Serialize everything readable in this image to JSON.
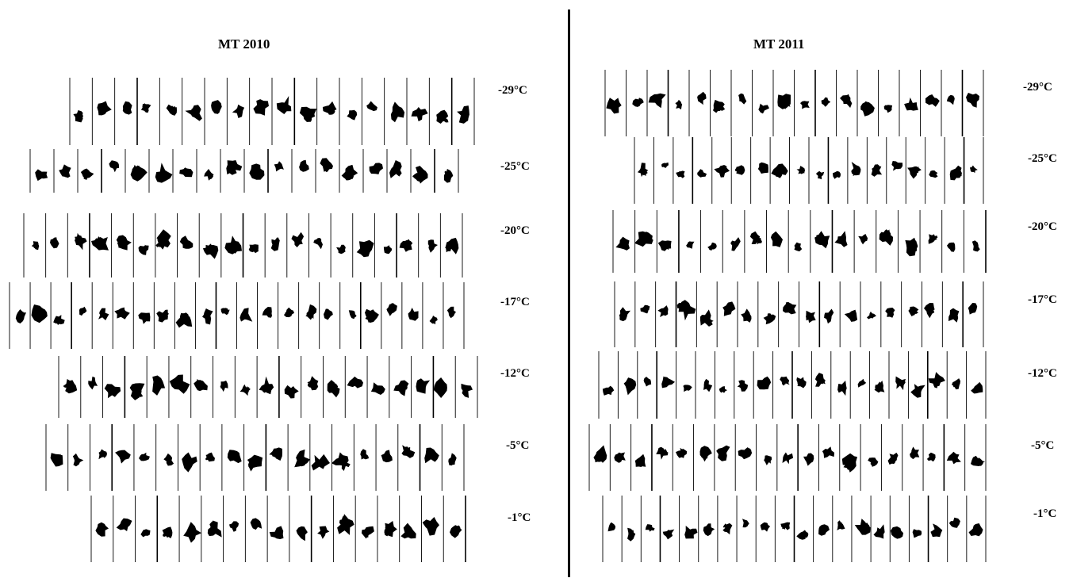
{
  "panels": [
    {
      "title": "MT 2010",
      "rows": [
        {
          "temp": "-29°C",
          "frames": 18
        },
        {
          "temp": "-25°C",
          "frames": 18
        },
        {
          "temp": "-20°C",
          "frames": 20
        },
        {
          "temp": "-17°C",
          "frames": 22
        },
        {
          "temp": "-12°C",
          "frames": 19
        },
        {
          "temp": "-5°C",
          "frames": 19
        },
        {
          "temp": "-1°C",
          "frames": 17
        }
      ]
    },
    {
      "title": "MT 2011",
      "rows": [
        {
          "temp": "-29°C",
          "frames": 18
        },
        {
          "temp": "-25°C",
          "frames": 18
        },
        {
          "temp": "-20°C",
          "frames": 17
        },
        {
          "temp": "-17°C",
          "frames": 18
        },
        {
          "temp": "-12°C",
          "frames": 20
        },
        {
          "temp": "-5°C",
          "frames": 19
        },
        {
          "temp": "-1°C",
          "frames": 20
        }
      ]
    }
  ],
  "colors": {
    "background": "#ffffff",
    "ink": "#000000"
  }
}
